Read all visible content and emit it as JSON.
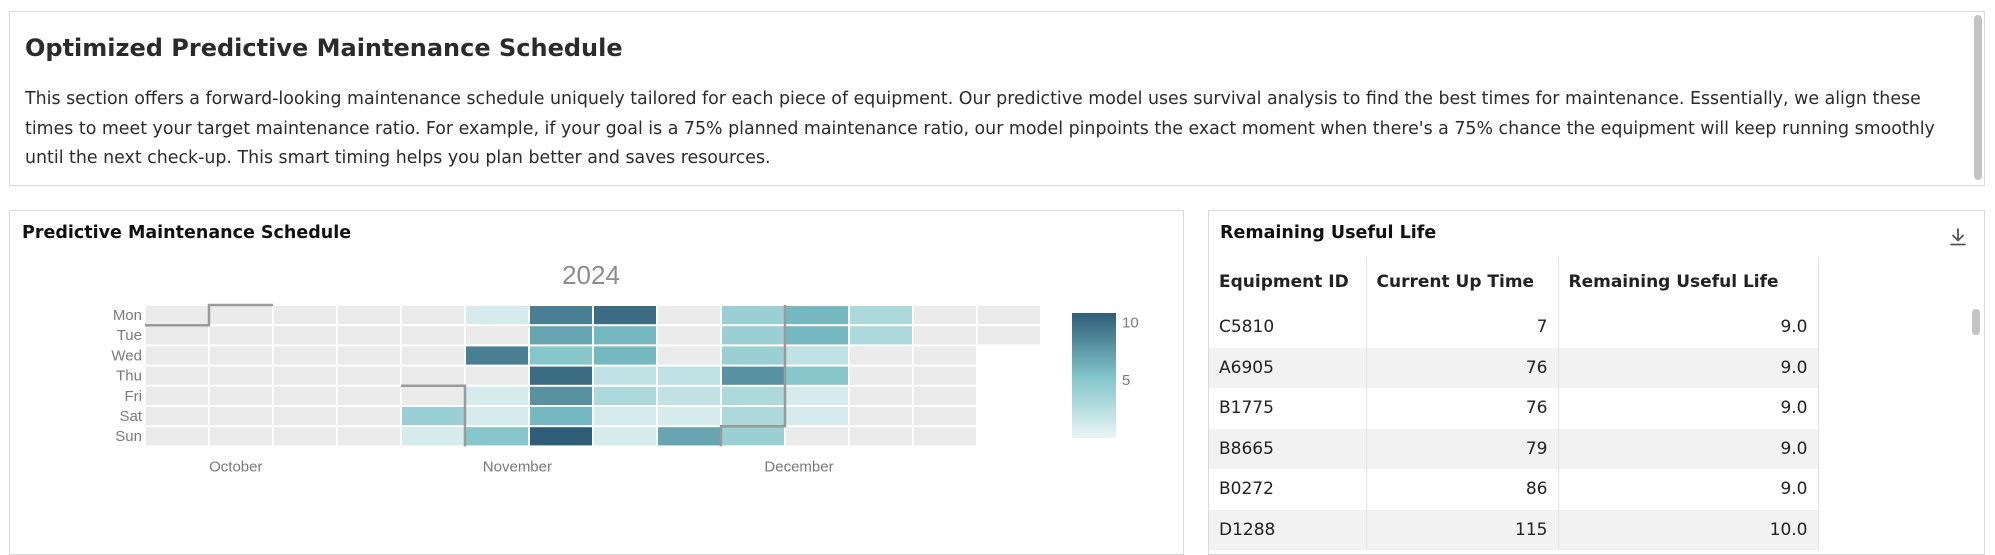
{
  "intro": {
    "title": "Optimized Predictive Maintenance Schedule",
    "description": "This section offers a forward-looking maintenance schedule uniquely tailored for each piece of equipment. Our predictive model uses survival analysis to find the best times for maintenance. Essentially, we align these times to meet your target maintenance ratio. For example, if your goal is a 75% planned maintenance ratio, our model pinpoints the exact moment when there's a 75% chance the equipment will keep running smoothly until the next check-up. This smart timing helps you plan better and saves resources."
  },
  "schedule": {
    "title": "Predictive Maintenance Schedule",
    "chart_data": {
      "type": "heatmap",
      "title": "2024",
      "row_labels": [
        "Mon",
        "Tue",
        "Wed",
        "Thu",
        "Fri",
        "Sat",
        "Sun"
      ],
      "month_labels": [
        {
          "label": "October",
          "week": 1.2
        },
        {
          "label": "November",
          "week": 5.6
        },
        {
          "label": "December",
          "week": 10
        }
      ],
      "colorbar": {
        "min": 0,
        "max": 10.8,
        "ticks": [
          5,
          10
        ],
        "colors": [
          "#e8f4f4",
          "#7fc3c8",
          "#2f5d78"
        ]
      },
      "empty_color": "#ebebeb",
      "weeks": 14,
      "cells": [
        [
          null,
          null,
          null,
          null,
          null,
          1,
          9,
          10,
          null,
          4,
          6,
          3,
          null,
          null
        ],
        [
          null,
          null,
          null,
          null,
          null,
          null,
          7,
          6,
          null,
          4,
          6,
          3,
          null,
          null
        ],
        [
          null,
          null,
          null,
          null,
          null,
          9,
          5,
          6,
          null,
          4,
          2,
          null,
          null
        ],
        [
          null,
          null,
          null,
          null,
          null,
          null,
          10,
          2,
          2,
          8,
          5,
          null,
          null
        ],
        [
          null,
          null,
          null,
          null,
          null,
          1,
          8,
          3,
          2,
          3,
          1,
          null,
          null
        ],
        [
          null,
          null,
          null,
          null,
          4,
          1,
          6,
          1,
          1,
          3,
          1,
          null,
          null
        ],
        [
          null,
          null,
          null,
          null,
          1,
          5,
          11,
          1,
          7,
          4,
          null,
          null,
          null
        ]
      ],
      "month_boundaries": [
        [
          [
            0,
            1
          ],
          [
            1,
            1
          ],
          [
            1,
            0
          ],
          [
            2,
            0
          ]
        ],
        [
          [
            4,
            4
          ],
          [
            5,
            4
          ],
          [
            5,
            7
          ]
        ],
        [
          [
            9,
            7
          ],
          [
            9,
            6
          ],
          [
            10,
            6
          ],
          [
            10,
            0
          ]
        ]
      ]
    }
  },
  "rul": {
    "title": "Remaining Useful Life",
    "download_icon": "download-icon",
    "columns": [
      "Equipment ID",
      "Current Up Time",
      "Remaining Useful Life"
    ],
    "rows": [
      [
        "C5810",
        "7",
        "9.0"
      ],
      [
        "A6905",
        "76",
        "9.0"
      ],
      [
        "B1775",
        "76",
        "9.0"
      ],
      [
        "B8665",
        "79",
        "9.0"
      ],
      [
        "B0272",
        "86",
        "9.0"
      ],
      [
        "D1288",
        "115",
        "10.0"
      ]
    ]
  }
}
